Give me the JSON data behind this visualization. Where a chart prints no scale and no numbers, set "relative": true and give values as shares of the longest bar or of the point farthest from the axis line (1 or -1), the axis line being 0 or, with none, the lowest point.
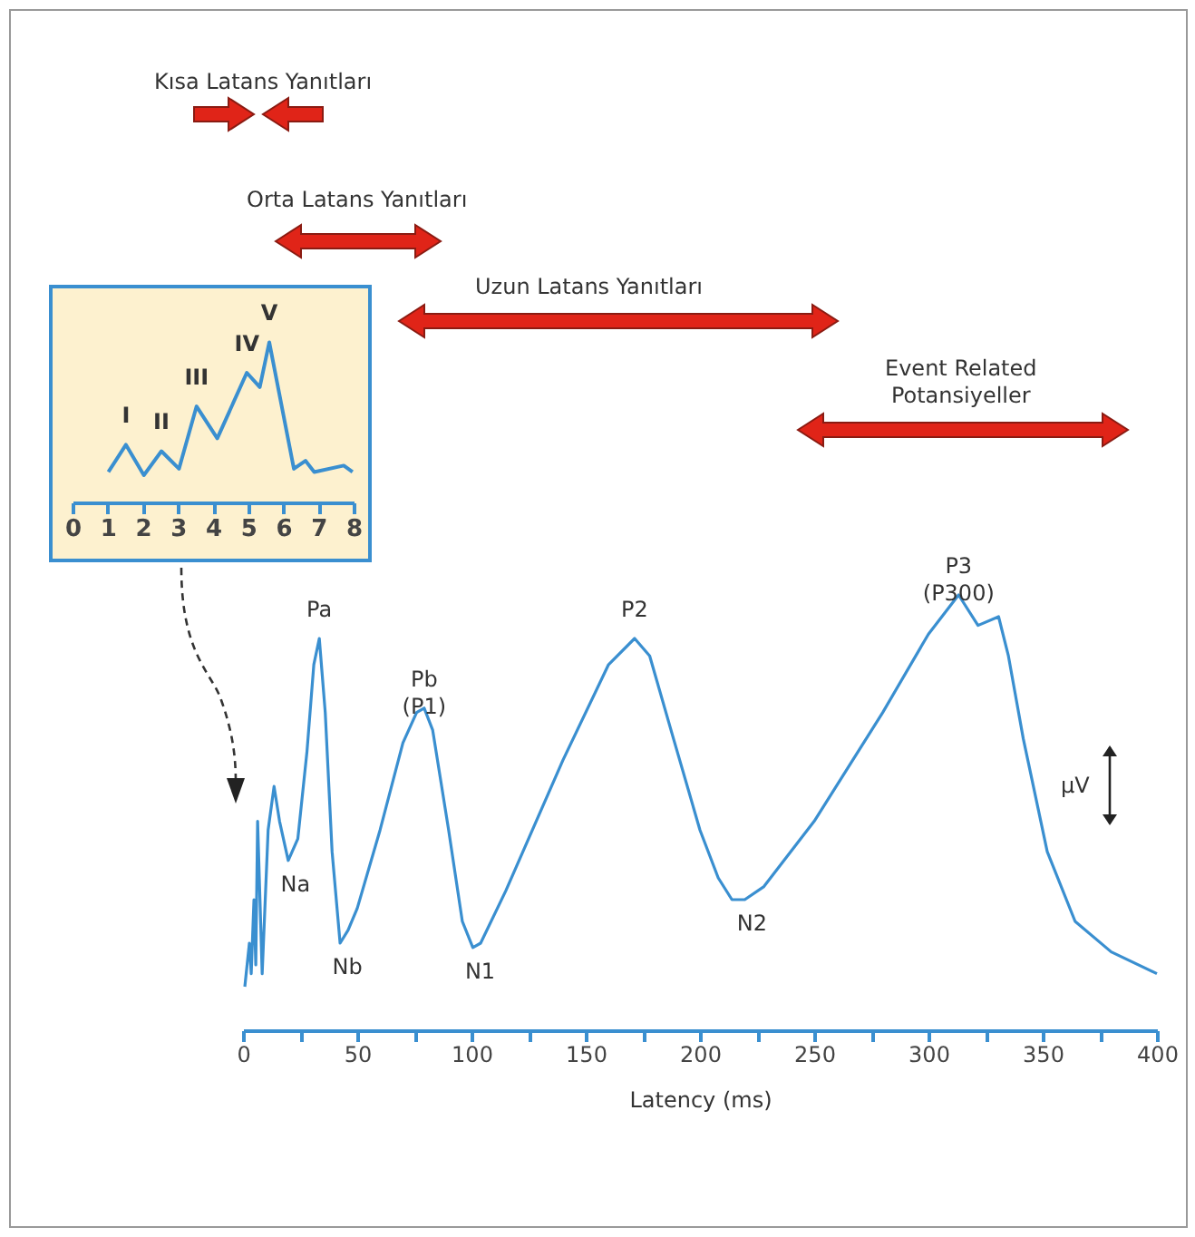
{
  "chart_data": [
    {
      "type": "line",
      "relative": true,
      "color": "#3a8fd0",
      "xlim": [
        0,
        8
      ],
      "xticks": [
        0,
        1,
        2,
        3,
        4,
        5,
        6,
        7,
        8
      ],
      "x": [
        1.02,
        1.52,
        2.03,
        2.53,
        3.03,
        3.53,
        4.12,
        4.96,
        5.33,
        5.6,
        6.3,
        6.63,
        6.88,
        7.72,
        7.97
      ],
      "values": [
        0.19,
        0.36,
        0.17,
        0.32,
        0.21,
        0.6,
        0.4,
        0.81,
        0.72,
        1,
        0.21,
        0.26,
        0.19,
        0.23,
        0.19
      ],
      "annotations": [
        {
          "text": "I",
          "x": 1.52,
          "y": 0.36
        },
        {
          "text": "II",
          "x": 2.53,
          "y": 0.32
        },
        {
          "text": "III",
          "x": 3.53,
          "y": 0.6
        },
        {
          "text": "IV",
          "x": 4.96,
          "y": 0.81
        },
        {
          "text": "V",
          "x": 5.6,
          "y": 1
        }
      ]
    },
    {
      "type": "line",
      "relative": true,
      "color": "#3a8fd0",
      "xlabel": "Latency (ms)",
      "xlim": [
        0,
        400
      ],
      "xticks": [
        0,
        {
          "value": 25,
          "label": null
        },
        50,
        {
          "value": 75,
          "label": null
        },
        100,
        {
          "value": 125,
          "label": null
        },
        150,
        {
          "value": 175,
          "label": null
        },
        200,
        {
          "value": 225,
          "label": null
        },
        250,
        {
          "value": 275,
          "label": null
        },
        300,
        {
          "value": 325,
          "label": null
        },
        350,
        {
          "value": 375,
          "label": null
        },
        400
      ],
      "x": [
        0.8,
        2.8,
        3.6,
        4.8,
        5.6,
        6.4,
        8.4,
        11,
        13.6,
        16,
        19.8,
        24,
        28,
        31,
        33.4,
        36,
        39,
        42.5,
        46,
        50,
        60,
        70,
        76,
        79.3,
        83,
        90,
        96,
        100.6,
        104,
        115,
        140,
        160,
        171.4,
        178,
        188.4,
        200,
        208,
        214,
        219.6,
        228,
        250,
        280,
        300,
        313.2,
        321.7,
        330.7,
        335,
        341.5,
        352,
        364.2,
        380,
        400
      ],
      "values": [
        0.1,
        0.2,
        0.13,
        0.3,
        0.15,
        0.48,
        0.13,
        0.46,
        0.56,
        0.48,
        0.39,
        0.44,
        0.64,
        0.84,
        0.9,
        0.73,
        0.41,
        0.2,
        0.23,
        0.28,
        0.46,
        0.66,
        0.73,
        0.74,
        0.69,
        0.46,
        0.25,
        0.19,
        0.2,
        0.32,
        0.62,
        0.84,
        0.9,
        0.86,
        0.67,
        0.46,
        0.35,
        0.3,
        0.3,
        0.33,
        0.48,
        0.73,
        0.91,
        1,
        0.93,
        0.95,
        0.86,
        0.67,
        0.41,
        0.25,
        0.18,
        0.13
      ],
      "annotations": [
        {
          "text": "Na",
          "x": 19.8,
          "y": 0.39
        },
        {
          "text": "Pa",
          "x": 33.4,
          "y": 0.9
        },
        {
          "text": "Nb",
          "x": 42.5,
          "y": 0.2
        },
        {
          "text": "Pb\n(P1)",
          "x": 79.3,
          "y": 0.74
        },
        {
          "text": "N1",
          "x": 100.6,
          "y": 0.19
        },
        {
          "text": "P2",
          "x": 171.4,
          "y": 0.9
        },
        {
          "text": "N2",
          "x": 219.6,
          "y": 0.3
        },
        {
          "text": "P3\n(P300)",
          "x": 313.2,
          "y": 1
        },
        "Kısa Latans Yanıtları",
        "Orta Latans Yanıtları",
        "Uzun Latans Yanıtları",
        "Event Related\nPotansiyeller",
        "µV"
      ]
    }
  ]
}
